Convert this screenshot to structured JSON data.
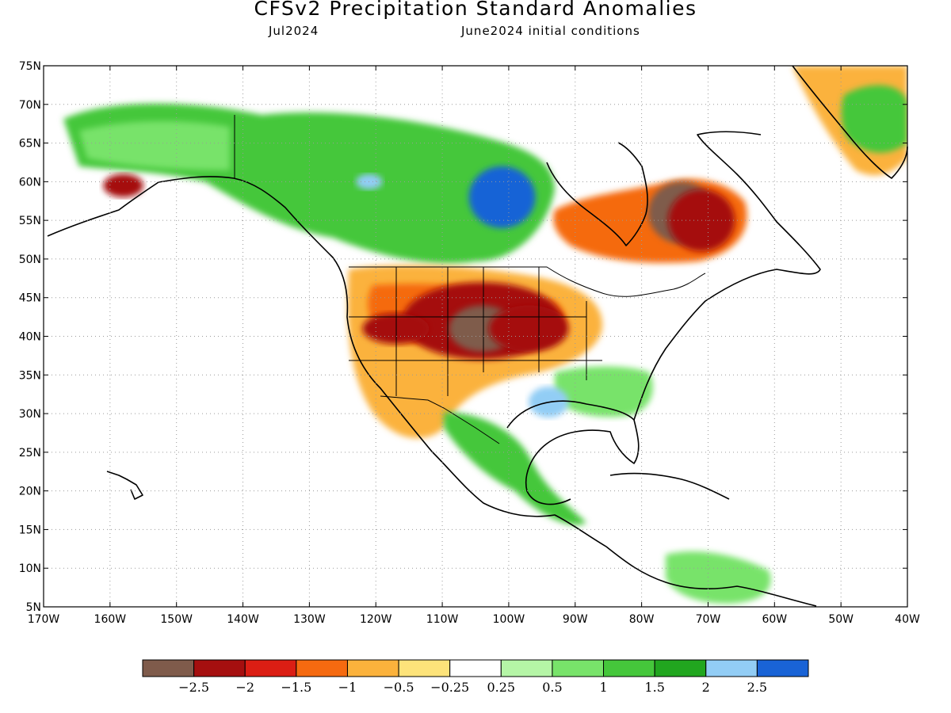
{
  "header": {
    "title": "CFSv2 Precipitation Standard Anomalies",
    "valid_month": "Jul2024",
    "initial_conditions": "June2024 initial conditions"
  },
  "map": {
    "projection": "cylindrical equidistant",
    "lon_range": [
      -170,
      -40
    ],
    "lat_range": [
      5,
      75
    ],
    "gridlines": "dotted",
    "lat_labels": [
      "5N",
      "10N",
      "15N",
      "20N",
      "25N",
      "30N",
      "35N",
      "40N",
      "45N",
      "50N",
      "55N",
      "60N",
      "65N",
      "70N",
      "75N"
    ],
    "lon_labels": [
      "170W",
      "160W",
      "150W",
      "140W",
      "130W",
      "120W",
      "110W",
      "100W",
      "90W",
      "80W",
      "70W",
      "60W",
      "50W",
      "40W"
    ],
    "lat_values": [
      5,
      10,
      15,
      20,
      25,
      30,
      35,
      40,
      45,
      50,
      55,
      60,
      65,
      70,
      75
    ],
    "lon_values": [
      -170,
      -160,
      -150,
      -140,
      -130,
      -120,
      -110,
      -100,
      -90,
      -80,
      -70,
      -60,
      -50,
      -40
    ]
  },
  "colorbar": {
    "colors": [
      "#7f5b4b",
      "#a50f0f",
      "#db1e14",
      "#f56a10",
      "#fbb23c",
      "#fde37a",
      "#ffffff",
      "#b5f5a6",
      "#78e36a",
      "#45c73b",
      "#21a61f",
      "#92cdf5",
      "#1963d6"
    ],
    "labels": [
      "−2.5",
      "−2",
      "−1.5",
      "−1",
      "−0.5",
      "−0.25",
      "0.25",
      "0.5",
      "1",
      "1.5",
      "2",
      "2.5"
    ]
  },
  "anomaly_regions": [
    {
      "lon": -104,
      "lat": 42,
      "rx": 12,
      "ry": 5,
      "class": "-2"
    },
    {
      "lon": -104,
      "lat": 41,
      "rx": 5,
      "ry": 3,
      "class": "-2.5"
    },
    {
      "lon": -97,
      "lat": 41,
      "rx": 6,
      "ry": 3,
      "class": "-2"
    },
    {
      "lon": -117,
      "lat": 41,
      "rx": 5,
      "ry": 2,
      "class": "-2"
    },
    {
      "lon": -74,
      "lat": 56,
      "rx": 5,
      "ry": 4,
      "class": "-2.5"
    },
    {
      "lon": -71,
      "lat": 55,
      "rx": 5,
      "ry": 4,
      "class": "-2"
    },
    {
      "lon": -94,
      "lat": 31.5,
      "rx": 3,
      "ry": 2,
      "class": "2"
    },
    {
      "lon": -101,
      "lat": 58,
      "rx": 5,
      "ry": 4,
      "class": "2.5"
    },
    {
      "lon": -121,
      "lat": 60,
      "rx": 2,
      "ry": 1,
      "class": "2"
    },
    {
      "lon": -158,
      "lat": 59.5,
      "rx": 3,
      "ry": 1.5,
      "class": "-2"
    }
  ]
}
